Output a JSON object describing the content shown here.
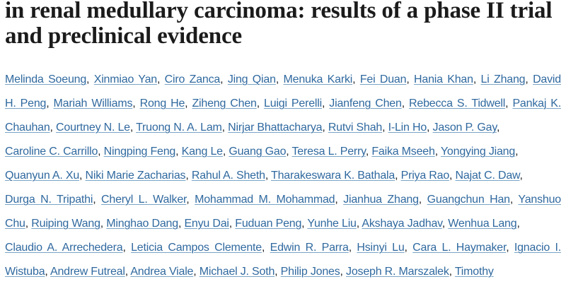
{
  "colors": {
    "background": "#ffffff",
    "title": "#1b1b1b",
    "link": "#30699f",
    "link_underline": "#7aa4c6",
    "separator": "#262626"
  },
  "article": {
    "title": "in renal medullary carcinoma: results of a phase II trial and preclinical evidence"
  },
  "authors": {
    "separator": ", ",
    "lines": [
      {
        "names": [
          "Melinda Soeung",
          "Xinmiao Yan",
          "Ciro Zanca",
          "Jing Qian",
          "Menuka Karki",
          "Fei Duan",
          "Hania Khan",
          "Li Zhang",
          "David"
        ],
        "trailing_comma": false
      },
      {
        "names": [
          "H. Peng",
          "Mariah Williams",
          "Rong He",
          "Ziheng Chen",
          "Luigi Perelli",
          "Jianfeng Chen",
          "Rebecca S. Tidwell",
          "Pankaj K."
        ],
        "trailing_comma": false
      },
      {
        "names": [
          "Chauhan",
          "Courtney N. Le",
          "Truong N. A. Lam",
          "Nirjar Bhattacharya",
          "Rutvi Shah",
          "I-Lin Ho",
          "Jason P. Gay"
        ],
        "trailing_comma": true
      },
      {
        "names": [
          "Caroline C. Carrillo",
          "Ningping Feng",
          "Kang Le",
          "Guang Gao",
          "Teresa L. Perry",
          "Faika Mseeh",
          "Yongying Jiang"
        ],
        "trailing_comma": true
      },
      {
        "names": [
          "Quanyun A. Xu",
          "Niki Marie Zacharias",
          "Rahul A. Sheth",
          "Tharakeswara K. Bathala",
          "Priya Rao",
          "Najat C. Daw"
        ],
        "trailing_comma": true
      },
      {
        "names": [
          "Durga N. Tripathi",
          "Cheryl L. Walker",
          "Mohammad M. Mohammad",
          "Jianhua Zhang",
          "Guangchun Han",
          "Yanshuo"
        ],
        "trailing_comma": false
      },
      {
        "names": [
          "Chu",
          "Ruiping Wang",
          "Minghao Dang",
          "Enyu Dai",
          "Fuduan Peng",
          "Yunhe Liu",
          "Akshaya Jadhav",
          "Wenhua Lang"
        ],
        "trailing_comma": true
      },
      {
        "names": [
          "Claudio A. Arrechedera",
          "Leticia Campos Clemente",
          "Edwin R. Parra",
          "Hsinyi Lu",
          "Cara L. Haymaker",
          "Ignacio I."
        ],
        "trailing_comma": false
      },
      {
        "names": [
          "Wistuba",
          "Andrew Futreal",
          "Andrea Viale",
          "Michael J. Soth",
          "Philip Jones",
          "Joseph R. Marszalek",
          "Timothy"
        ],
        "trailing_comma": false
      }
    ]
  }
}
